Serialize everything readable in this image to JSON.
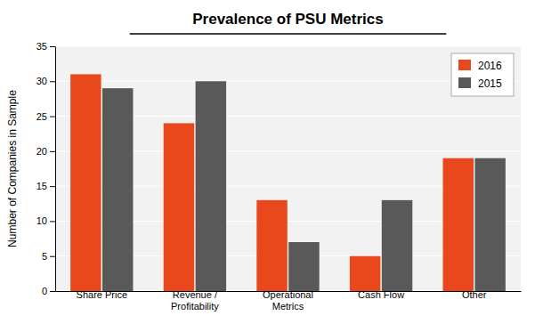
{
  "chart_data": {
    "type": "bar",
    "title": "Prevalence of PSU Metrics",
    "ylabel": "Number of Companies in Sample",
    "categories": [
      "Share Price",
      "Revenue /\nProfitability",
      "Operational\nMetrics",
      "Cash Flow",
      "Other"
    ],
    "series": [
      {
        "name": "2016",
        "color": "#E8481C",
        "values": [
          31,
          24,
          13,
          5,
          19
        ]
      },
      {
        "name": "2015",
        "color": "#595959",
        "values": [
          29,
          30,
          7,
          13,
          19
        ]
      }
    ],
    "ylim": [
      0,
      35
    ],
    "yticks": [
      0,
      5,
      10,
      15,
      20,
      25,
      30,
      35
    ],
    "grid": true,
    "legend": "upper right"
  }
}
